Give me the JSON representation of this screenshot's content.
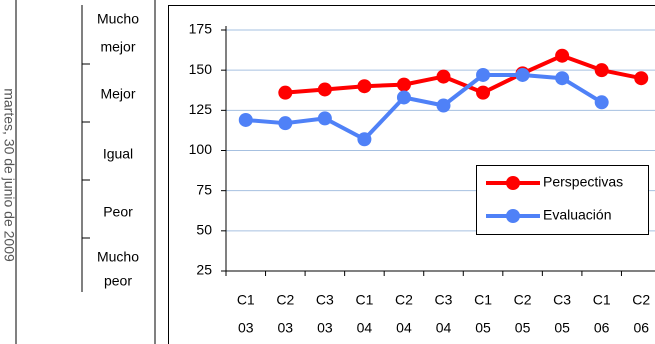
{
  "date_note": "martes, 30 de junio de 2009",
  "scale_labels": [
    [
      "Mucho",
      "mejor"
    ],
    [
      "Mejor"
    ],
    [
      "Igual"
    ],
    [
      "Peor"
    ],
    [
      "Mucho",
      "peor"
    ]
  ],
  "chart_data": {
    "type": "line",
    "categories": [
      [
        "C1",
        "03"
      ],
      [
        "C2",
        "03"
      ],
      [
        "C3",
        "03"
      ],
      [
        "C1",
        "04"
      ],
      [
        "C2",
        "04"
      ],
      [
        "C3",
        "04"
      ],
      [
        "C1",
        "05"
      ],
      [
        "C2",
        "05"
      ],
      [
        "C3",
        "05"
      ],
      [
        "C1",
        "06"
      ],
      [
        "C2",
        "06"
      ]
    ],
    "series": [
      {
        "name": "Perspectivas",
        "color": "#ff0000",
        "values": [
          null,
          136,
          138,
          140,
          141,
          146,
          136,
          148,
          159,
          150,
          145
        ]
      },
      {
        "name": "Evaluación",
        "color": "#4f81f7",
        "values": [
          119,
          117,
          120,
          107,
          133,
          128,
          147,
          147,
          145,
          130,
          null
        ]
      }
    ],
    "ylim": [
      25,
      175
    ],
    "yticks": [
      25,
      50,
      75,
      100,
      125,
      150,
      175
    ],
    "grid": true,
    "legend": "right"
  }
}
